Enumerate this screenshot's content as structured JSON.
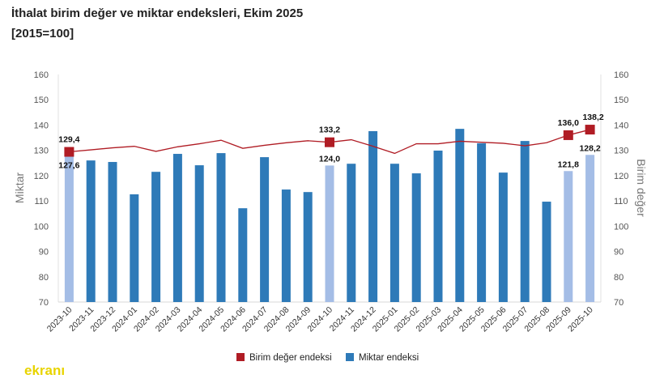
{
  "title_line1": "İthalat birim değer ve miktar endeksleri, Ekim 2025",
  "title_line2": "[2015=100]",
  "logo_text": "ekranı",
  "chart_data": {
    "type": "bar",
    "title": "İthalat birim değer ve miktar endeksleri, Ekim 2025 [2015=100]",
    "ylabel": "Miktar",
    "y2label": "Birim değer",
    "ylim": [
      70,
      160
    ],
    "y2lim": [
      70,
      160
    ],
    "yticks": [
      70,
      80,
      90,
      100,
      110,
      120,
      130,
      140,
      150,
      160
    ],
    "categories": [
      "2023-10",
      "2023-11",
      "2023-12",
      "2024-01",
      "2024-02",
      "2024-03",
      "2024-04",
      "2024-05",
      "2024-06",
      "2024-07",
      "2024-08",
      "2024-09",
      "2024-10",
      "2024-11",
      "2024-12",
      "2025-01",
      "2025-02",
      "2025-03",
      "2025-04",
      "2025-05",
      "2025-06",
      "2025-07",
      "2025-08",
      "2025-09",
      "2025-10"
    ],
    "series": [
      {
        "name": "Birim değer endeksi",
        "type": "line",
        "axis": "right",
        "color": "#b01c24",
        "values": [
          129.4,
          130.2,
          131.0,
          131.6,
          129.6,
          131.4,
          132.6,
          134.0,
          130.8,
          132.0,
          133.0,
          133.8,
          133.2,
          134.2,
          131.6,
          128.8,
          132.6,
          132.6,
          133.6,
          133.2,
          132.8,
          131.8,
          133.0,
          136.0,
          138.2
        ]
      },
      {
        "name": "Miktar endeksi",
        "type": "bar",
        "axis": "left",
        "color": "#2e7ab8",
        "highlight_color": "#a4bde6",
        "values": [
          127.6,
          126.0,
          125.4,
          112.6,
          121.5,
          128.6,
          124.1,
          128.9,
          107.1,
          127.3,
          114.5,
          113.5,
          124.0,
          124.7,
          137.6,
          124.7,
          120.9,
          129.9,
          138.5,
          132.8,
          121.2,
          133.7,
          109.7,
          121.8,
          128.2
        ]
      }
    ],
    "highlighted": [
      "2023-10",
      "2024-10",
      "2025-09",
      "2025-10"
    ],
    "data_labels": [
      {
        "category": "2023-10",
        "series": "Birim değer endeksi",
        "text": "129,4"
      },
      {
        "category": "2023-10",
        "series": "Miktar endeksi",
        "text": "127,6"
      },
      {
        "category": "2024-10",
        "series": "Birim değer endeksi",
        "text": "133,2"
      },
      {
        "category": "2024-10",
        "series": "Miktar endeksi",
        "text": "124,0"
      },
      {
        "category": "2025-09",
        "series": "Birim değer endeksi",
        "text": "136,0"
      },
      {
        "category": "2025-09",
        "series": "Miktar endeksi",
        "text": "121,8"
      },
      {
        "category": "2025-10",
        "series": "Birim değer endeksi",
        "text": "138,2"
      },
      {
        "category": "2025-10",
        "series": "Miktar endeksi",
        "text": "128,2"
      }
    ],
    "legend": [
      "Birim değer endeksi",
      "Miktar endeksi"
    ],
    "legend_position": "bottom"
  }
}
